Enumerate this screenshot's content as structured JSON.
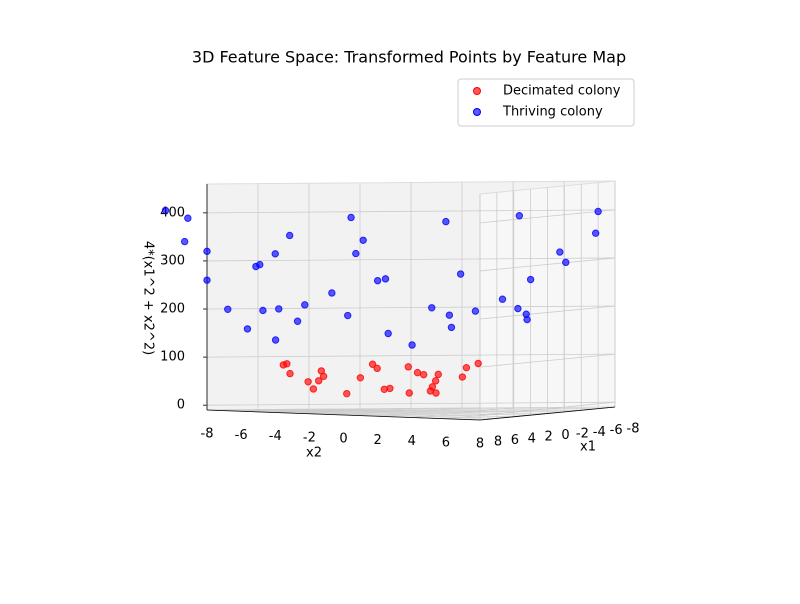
{
  "chart_data": {
    "type": "scatter3d",
    "title": "3D Feature Space: Transformed Points by Feature Map",
    "xlabel": "x1",
    "ylabel": "x2",
    "zlabel": "4*(x1^2 + x2^2)",
    "xlim": [
      -8,
      8
    ],
    "ylim": [
      -8,
      8
    ],
    "zlim": [
      -10,
      460
    ],
    "xticks": [
      -8,
      -6,
      -4,
      -2,
      0,
      2,
      4,
      6,
      8
    ],
    "yticks": [
      -8,
      -6,
      -4,
      -2,
      0,
      2,
      4,
      6,
      8
    ],
    "zticks": [
      0,
      100,
      200,
      300,
      400
    ],
    "grid": true,
    "legend": "upper right",
    "series": [
      {
        "name": "Decimated colony",
        "color": "#ff0000",
        "x": [
          3,
          -3,
          2,
          -2,
          4,
          0,
          -4,
          1,
          3,
          -3,
          2.5,
          -1,
          4.5,
          -4.5,
          1,
          -1,
          2,
          -2,
          3.5,
          -3.5,
          0,
          -3,
          4,
          -2.5,
          2.5,
          1.5
        ],
        "y": [
          1,
          2,
          -3,
          -3,
          0,
          4,
          1,
          -4,
          3,
          -3,
          -1,
          2.5,
          1,
          -1,
          4.5,
          -4.5,
          2,
          2,
          -2,
          2,
          -3,
          0,
          2.5,
          4,
          -4,
          3
        ],
        "z": [
          40,
          52,
          52,
          52,
          64,
          64,
          68,
          68,
          72,
          72,
          29,
          29,
          85,
          85,
          85,
          85,
          32,
          32,
          65,
          65,
          36,
          36,
          89,
          89,
          89,
          45
        ]
      },
      {
        "name": "Thriving colony",
        "color": "#0000ff",
        "x": [
          6,
          -6,
          2,
          7,
          0,
          -7,
          1,
          5,
          -5,
          -5,
          5,
          8,
          -8,
          2,
          -1,
          6,
          -6,
          7,
          -5,
          9,
          1,
          -9,
          -2,
          8,
          -6,
          4,
          -9,
          10,
          1,
          6,
          -3,
          4,
          -6,
          8,
          -4,
          3,
          -7,
          9,
          -3,
          5,
          -3
        ],
        "y": [
          2,
          2,
          -6,
          0,
          7,
          1,
          -7,
          5,
          -5,
          5,
          -5,
          2,
          -1,
          8,
          -8,
          6,
          -6,
          -5,
          7,
          1,
          9,
          -2,
          -9,
          6,
          8,
          -9,
          4,
          1,
          -10,
          -3,
          6,
          6,
          -4,
          -4,
          -8,
          7,
          -3,
          -3,
          9,
          3,
          -5
        ],
        "z": [
          160,
          160,
          160,
          196,
          196,
          200,
          200,
          200,
          200,
          200,
          200,
          272,
          260,
          272,
          260,
          288,
          288,
          296,
          296,
          328,
          328,
          340,
          340,
          400,
          400,
          388,
          388,
          404,
          404,
          180,
          180,
          208,
          208,
          320,
          320,
          232,
          232,
          360,
          360,
          136,
          136
        ]
      }
    ]
  }
}
